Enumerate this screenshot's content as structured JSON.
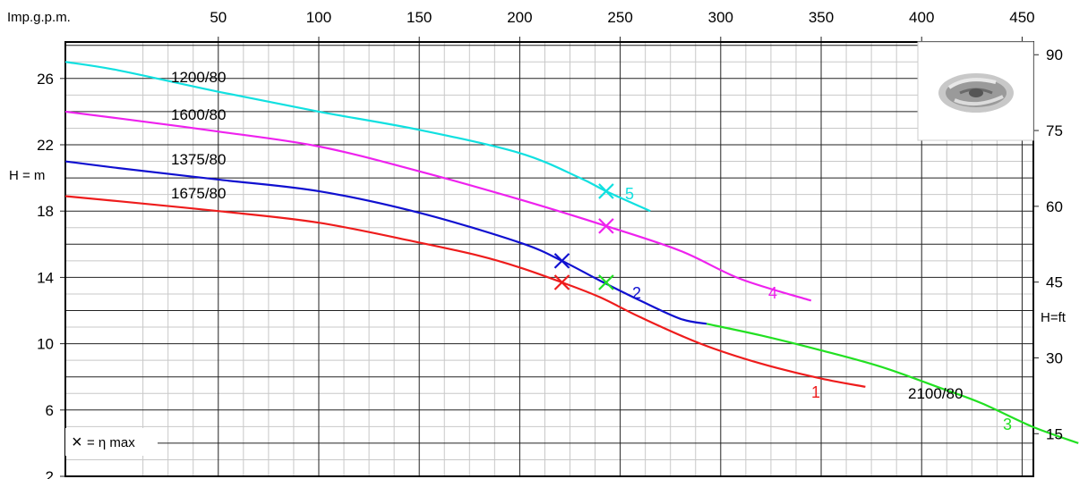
{
  "chart_data": {
    "type": "line",
    "x_axis": {
      "label": "Imp.g.p.m.",
      "range": [
        -26.1,
        455.6
      ],
      "ticks": [
        50,
        100,
        150,
        200,
        250,
        300,
        350,
        400,
        450
      ]
    },
    "y_axis_left": {
      "label": "H = m",
      "range": [
        2,
        28.2
      ],
      "ticks": [
        2,
        6,
        10,
        14,
        18,
        22,
        26
      ]
    },
    "y_axis_right": {
      "label": "H=ft",
      "ticks": [
        15,
        30,
        45,
        60,
        75,
        90
      ]
    },
    "grid": true,
    "series": [
      {
        "name": "1",
        "impeller_label": "1675/80",
        "color": "#ee1c1c",
        "points": [
          [
            -26.1,
            18.9
          ],
          [
            0,
            18.6
          ],
          [
            50,
            18.0
          ],
          [
            100,
            17.3
          ],
          [
            150,
            16.1
          ],
          [
            180,
            15.3
          ],
          [
            200,
            14.6
          ],
          [
            221,
            13.7
          ],
          [
            240,
            12.8
          ],
          [
            260,
            11.6
          ],
          [
            290,
            10.0
          ],
          [
            320,
            8.8
          ],
          [
            350,
            7.9
          ],
          [
            372,
            7.4
          ]
        ],
        "eta_max": [
          221,
          13.7
        ]
      },
      {
        "name": "2",
        "impeller_label": "1375/80",
        "color": "#1010d0",
        "points": [
          [
            -26.1,
            21.0
          ],
          [
            0,
            20.6
          ],
          [
            50,
            19.9
          ],
          [
            100,
            19.2
          ],
          [
            150,
            17.9
          ],
          [
            200,
            16.1
          ],
          [
            221,
            15.0
          ],
          [
            240,
            13.8
          ],
          [
            260,
            12.6
          ],
          [
            280,
            11.5
          ],
          [
            293,
            11.2
          ]
        ],
        "eta_max": [
          221,
          15.0
        ]
      },
      {
        "name": "3",
        "impeller_label": "2100/80",
        "color": "#22e022",
        "points": [
          [
            293,
            11.2
          ],
          [
            320,
            10.5
          ],
          [
            350,
            9.6
          ],
          [
            380,
            8.6
          ],
          [
            410,
            7.3
          ],
          [
            430,
            6.4
          ],
          [
            455,
            5.0
          ],
          [
            478,
            4.0
          ]
        ],
        "eta_max": [
          243,
          13.7
        ]
      },
      {
        "name": "4",
        "impeller_label": "1600/80",
        "color": "#ee22ee",
        "points": [
          [
            -26.1,
            24.0
          ],
          [
            0,
            23.6
          ],
          [
            50,
            22.8
          ],
          [
            100,
            21.9
          ],
          [
            150,
            20.4
          ],
          [
            200,
            18.7
          ],
          [
            243,
            17.1
          ],
          [
            280,
            15.6
          ],
          [
            310,
            13.9
          ],
          [
            345,
            12.6
          ]
        ],
        "eta_max": [
          243,
          17.1
        ]
      },
      {
        "name": "5",
        "impeller_label": "1200/80",
        "color": "#11e0e0",
        "points": [
          [
            -26.1,
            27.0
          ],
          [
            0,
            26.5
          ],
          [
            50,
            25.2
          ],
          [
            100,
            24.0
          ],
          [
            150,
            22.9
          ],
          [
            200,
            21.5
          ],
          [
            230,
            20.0
          ],
          [
            243,
            19.2
          ],
          [
            265,
            18.0
          ]
        ],
        "eta_max": [
          243,
          19.2
        ]
      }
    ],
    "series_labels": [
      "1",
      "2",
      "3",
      "4",
      "5"
    ],
    "impeller_labels": [
      "1200/80",
      "1600/80",
      "1375/80",
      "1675/80",
      "2100/80"
    ],
    "legend": {
      "eta_marker": "×",
      "eta_text": "= η max"
    }
  },
  "logo": {
    "icon": "pump-impeller-icon"
  }
}
